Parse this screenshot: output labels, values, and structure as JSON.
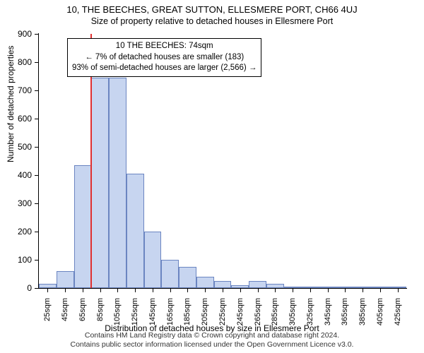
{
  "title": "10, THE BEECHES, GREAT SUTTON, ELLESMERE PORT, CH66 4UJ",
  "subtitle": "Size of property relative to detached houses in Ellesmere Port",
  "ylabel": "Number of detached properties",
  "xlabel": "Distribution of detached houses by size in Ellesmere Port",
  "chart": {
    "type": "histogram",
    "ylim": [
      0,
      900
    ],
    "ytick_step": 100,
    "categories": [
      "25sqm",
      "45sqm",
      "65sqm",
      "85sqm",
      "105sqm",
      "125sqm",
      "145sqm",
      "165sqm",
      "185sqm",
      "205sqm",
      "225sqm",
      "245sqm",
      "265sqm",
      "285sqm",
      "305sqm",
      "325sqm",
      "345sqm",
      "365sqm",
      "385sqm",
      "405sqm",
      "425sqm"
    ],
    "values": [
      15,
      60,
      435,
      745,
      745,
      405,
      200,
      100,
      75,
      40,
      25,
      10,
      25,
      15,
      5,
      5,
      3,
      3,
      5,
      3,
      3
    ],
    "bar_fill": "#c7d5f0",
    "bar_border": "#6b85c1",
    "axis_color": "#000000",
    "background": "#ffffff",
    "bar_width": 1.0
  },
  "marker": {
    "position_sqm": 74,
    "color": "#e03030"
  },
  "annotation": {
    "line1": "10 THE BEECHES: 74sqm",
    "line2": "← 7% of detached houses are smaller (183)",
    "line3": "93% of semi-detached houses are larger (2,566) →"
  },
  "attribution": {
    "line1": "Contains HM Land Registry data © Crown copyright and database right 2024.",
    "line2": "Contains public sector information licensed under the Open Government Licence v3.0."
  }
}
